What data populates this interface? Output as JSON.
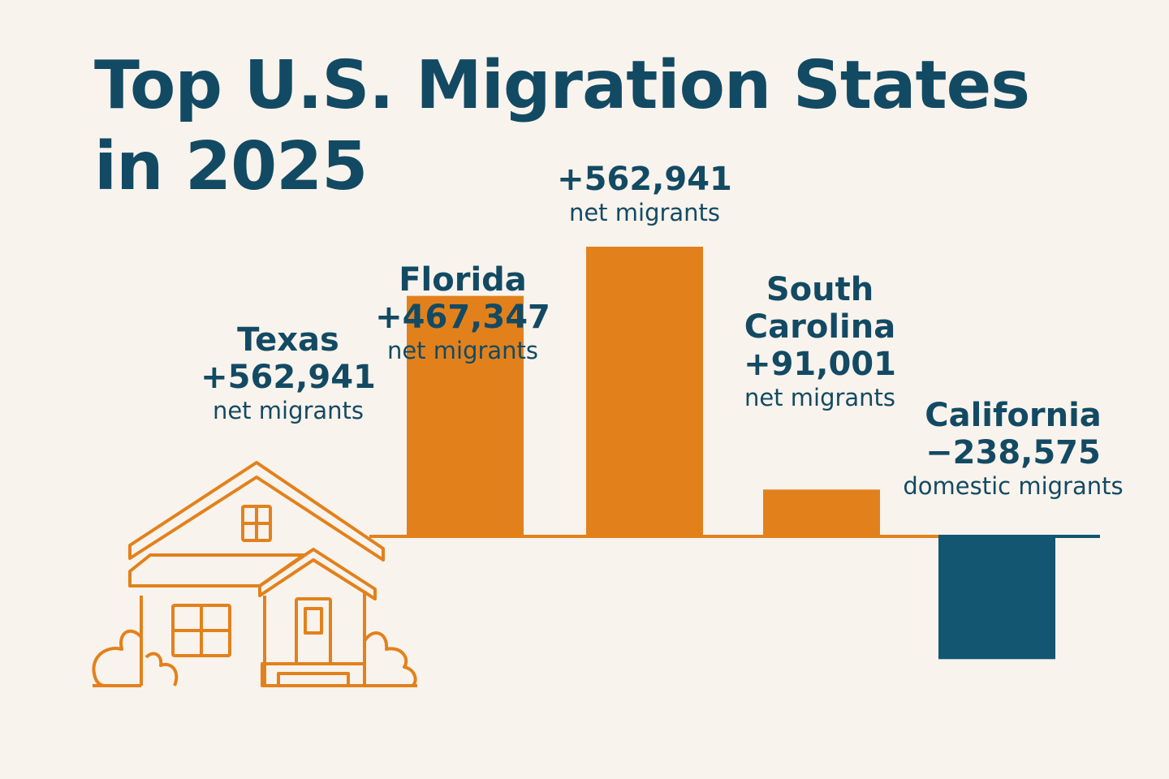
{
  "chart_data": {
    "type": "bar",
    "title": "Top U.S. Migration States in 2025",
    "categories": [
      "Florida",
      "",
      "South Carolina",
      "California"
    ],
    "values": [
      467347,
      562941,
      91001,
      -238575
    ],
    "value_labels": [
      "+467,347",
      "+562,941",
      "+91,001",
      "−238,575"
    ],
    "unit_labels": [
      "net migrants",
      "net migrants",
      "net migrants",
      "domestic migrants"
    ],
    "annotations": [
      {
        "name": "Texas",
        "value": 562941,
        "value_label": "+562,941",
        "unit_label": "net migrants",
        "icon": "house-icon"
      }
    ],
    "colors": {
      "positive": "#e2811c",
      "negative": "#125672",
      "text": "#134a63",
      "background": "#f8f3ec"
    },
    "grid": false,
    "legend": "none"
  },
  "title_lines": [
    "Top U.S. Migration States",
    "in 2025"
  ]
}
